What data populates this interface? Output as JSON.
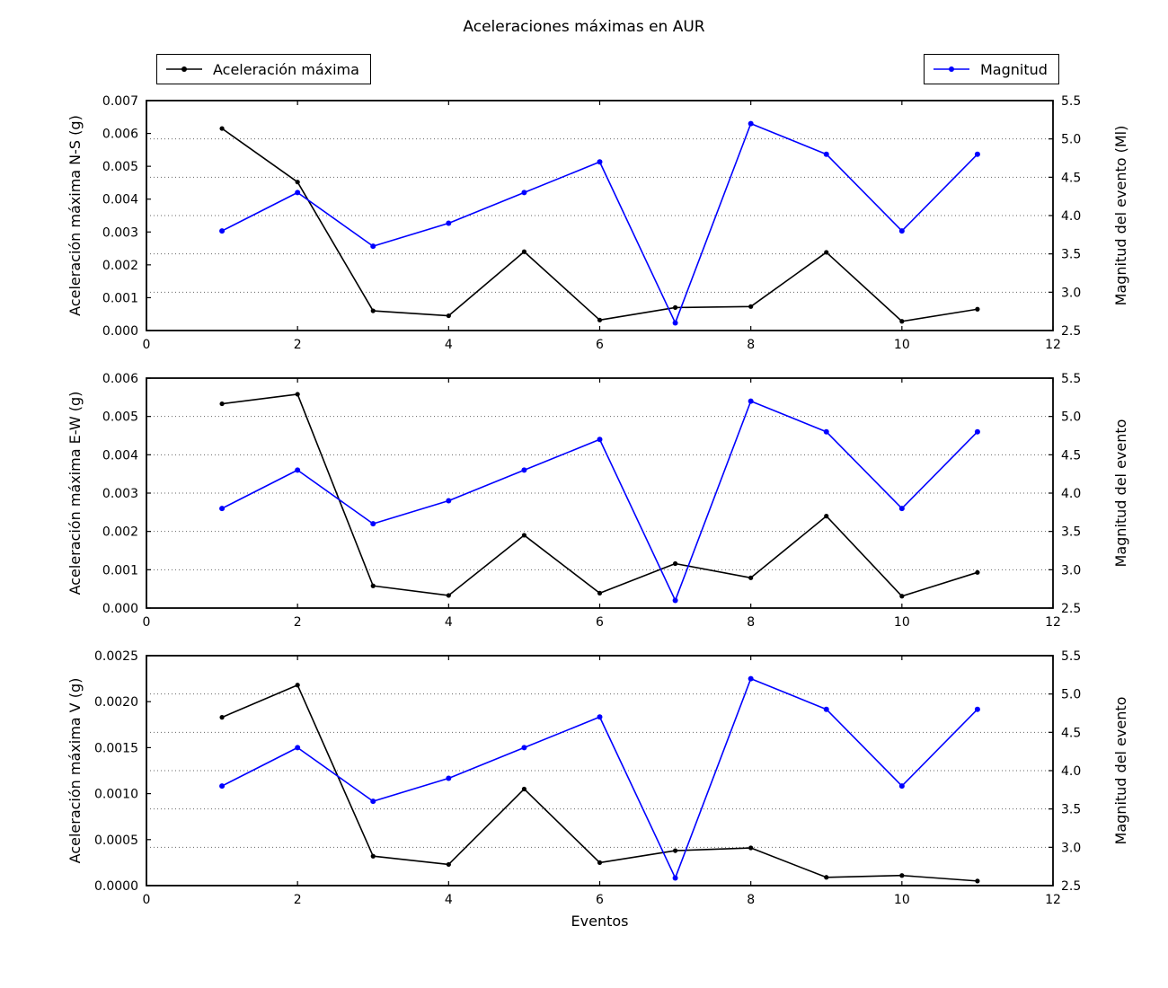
{
  "title": "Aceleraciones máximas en AUR",
  "xlabel": "Eventos",
  "legend": {
    "aceleracion": "Aceleración máxima",
    "magnitud": "Magnitud"
  },
  "colors": {
    "aceleracion": "#000000",
    "magnitud": "#0000ff",
    "grid": "#666666",
    "spine": "#000000"
  },
  "chart_data": [
    {
      "type": "line",
      "name": "aceleracion-ns",
      "ylabel_left": "Aceleración máxima N-S (g)",
      "ylabel_right": "Magnitud del evento (Ml)",
      "xlim": [
        0,
        12
      ],
      "ylim_left": [
        0,
        0.007
      ],
      "ylim_right": [
        2.5,
        5.5
      ],
      "grid": "dotted-horizontal",
      "grid_right_values": [
        3.0,
        3.5,
        4.0,
        4.5,
        5.0
      ],
      "x": [
        1,
        2,
        3,
        4,
        5,
        6,
        7,
        8,
        9,
        10,
        11
      ],
      "x_ticks": {
        "values": [
          0,
          2,
          4,
          6,
          8,
          10,
          12
        ],
        "labels": [
          "0",
          "2",
          "4",
          "6",
          "8",
          "10",
          "12"
        ]
      },
      "left_ticks": {
        "values": [
          0,
          0.001,
          0.002,
          0.003,
          0.004,
          0.005,
          0.006,
          0.007
        ],
        "labels": [
          "0.000",
          "0.001",
          "0.002",
          "0.003",
          "0.004",
          "0.005",
          "0.006",
          "0.007"
        ]
      },
      "right_ticks": {
        "values": [
          2.5,
          3.0,
          3.5,
          4.0,
          4.5,
          5.0,
          5.5
        ],
        "labels": [
          "2.5",
          "3.0",
          "3.5",
          "4.0",
          "4.5",
          "5.0",
          "5.5"
        ]
      },
      "series": [
        {
          "name": "Aceleración máxima",
          "axis": "left",
          "color_key": "aceleracion",
          "values": [
            0.00615,
            0.00452,
            0.0006,
            0.00045,
            0.0024,
            0.00032,
            0.0007,
            0.00073,
            0.00238,
            0.00028,
            0.00065
          ]
        },
        {
          "name": "Magnitud",
          "axis": "right",
          "color_key": "magnitud",
          "values": [
            3.8,
            4.3,
            3.6,
            3.9,
            4.3,
            4.7,
            2.6,
            5.2,
            4.8,
            3.8,
            4.8
          ]
        }
      ]
    },
    {
      "type": "line",
      "name": "aceleracion-ew",
      "ylabel_left": "Aceleración máxima E-W (g)",
      "ylabel_right": "Magnitud del evento",
      "xlim": [
        0,
        12
      ],
      "ylim_left": [
        0,
        0.006
      ],
      "ylim_right": [
        2.5,
        5.5
      ],
      "grid": "dotted-horizontal",
      "grid_right_values": [
        3.0,
        3.5,
        4.0,
        4.5,
        5.0
      ],
      "x": [
        1,
        2,
        3,
        4,
        5,
        6,
        7,
        8,
        9,
        10,
        11
      ],
      "x_ticks": {
        "values": [
          0,
          2,
          4,
          6,
          8,
          10,
          12
        ],
        "labels": [
          "0",
          "2",
          "4",
          "6",
          "8",
          "10",
          "12"
        ]
      },
      "left_ticks": {
        "values": [
          0,
          0.001,
          0.002,
          0.003,
          0.004,
          0.005,
          0.006
        ],
        "labels": [
          "0.000",
          "0.001",
          "0.002",
          "0.003",
          "0.004",
          "0.005",
          "0.006"
        ]
      },
      "right_ticks": {
        "values": [
          2.5,
          3.0,
          3.5,
          4.0,
          4.5,
          5.0,
          5.5
        ],
        "labels": [
          "2.5",
          "3.0",
          "3.5",
          "4.0",
          "4.5",
          "5.0",
          "5.5"
        ]
      },
      "series": [
        {
          "name": "Aceleración máxima",
          "axis": "left",
          "color_key": "aceleracion",
          "values": [
            0.00533,
            0.00558,
            0.00058,
            0.00033,
            0.0019,
            0.00039,
            0.00116,
            0.00079,
            0.0024,
            0.00031,
            0.00093
          ]
        },
        {
          "name": "Magnitud",
          "axis": "right",
          "color_key": "magnitud",
          "values": [
            3.8,
            4.3,
            3.6,
            3.9,
            4.3,
            4.7,
            2.6,
            5.2,
            4.8,
            3.8,
            4.8
          ]
        }
      ]
    },
    {
      "type": "line",
      "name": "aceleracion-v",
      "ylabel_left": "Aceleración máxima V (g)",
      "ylabel_right": "Magnitud del evento",
      "xlim": [
        0,
        12
      ],
      "ylim_left": [
        0,
        0.0025
      ],
      "ylim_right": [
        2.5,
        5.5
      ],
      "grid": "dotted-horizontal",
      "grid_right_values": [
        3.0,
        3.5,
        4.0,
        4.5,
        5.0
      ],
      "x": [
        1,
        2,
        3,
        4,
        5,
        6,
        7,
        8,
        9,
        10,
        11
      ],
      "x_ticks": {
        "values": [
          0,
          2,
          4,
          6,
          8,
          10,
          12
        ],
        "labels": [
          "0",
          "2",
          "4",
          "6",
          "8",
          "10",
          "12"
        ]
      },
      "left_ticks": {
        "values": [
          0,
          0.0005,
          0.001,
          0.0015,
          0.002,
          0.0025
        ],
        "labels": [
          "0.0000",
          "0.0005",
          "0.0010",
          "0.0015",
          "0.0020",
          "0.0025"
        ]
      },
      "right_ticks": {
        "values": [
          2.5,
          3.0,
          3.5,
          4.0,
          4.5,
          5.0,
          5.5
        ],
        "labels": [
          "2.5",
          "3.0",
          "3.5",
          "4.0",
          "4.5",
          "5.0",
          "5.5"
        ]
      },
      "series": [
        {
          "name": "Aceleración máxima",
          "axis": "left",
          "color_key": "aceleracion",
          "values": [
            0.00183,
            0.00218,
            0.00032,
            0.00023,
            0.00105,
            0.00025,
            0.00038,
            0.00041,
            9e-05,
            0.00011,
            5e-05
          ]
        },
        {
          "name": "Magnitud",
          "axis": "right",
          "color_key": "magnitud",
          "values": [
            3.8,
            4.3,
            3.6,
            3.9,
            4.3,
            4.7,
            2.6,
            5.2,
            4.8,
            3.8,
            4.8
          ]
        }
      ]
    }
  ]
}
